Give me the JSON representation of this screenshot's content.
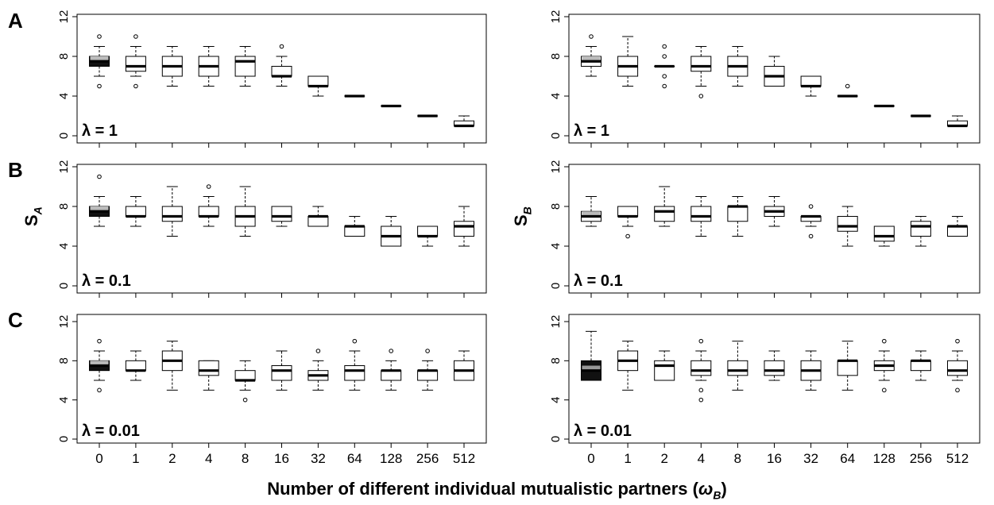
{
  "figure": {
    "xlabel_prefix": "Number of different individual mutualistic partners (",
    "xlabel_symbol": "ω",
    "xlabel_sub": "B",
    "xlabel_suffix": ")",
    "row_letters": [
      "A",
      "B",
      "C"
    ],
    "ylabel_left_main": "S",
    "ylabel_left_sub": "A",
    "ylabel_right_main": "S",
    "ylabel_right_sub": "B"
  },
  "chart_data": [
    {
      "type": "boxplot",
      "id": "A-left",
      "annotation": "λ = 1",
      "categories": [
        "0",
        "1",
        "2",
        "4",
        "8",
        "16",
        "32",
        "64",
        "128",
        "256",
        "512"
      ],
      "ylim": [
        0,
        12
      ],
      "yticks": [
        0,
        4,
        8,
        12
      ],
      "ylabel": "",
      "boxes": [
        {
          "min": 6,
          "q1": 7,
          "median": 7.5,
          "q3": 8,
          "max": 9,
          "outliers": [
            10,
            5
          ],
          "fill": "black",
          "shade": "#bbbbbb"
        },
        {
          "min": 6,
          "q1": 6.5,
          "median": 7,
          "q3": 8,
          "max": 9,
          "outliers": [
            10,
            5
          ]
        },
        {
          "min": 5,
          "q1": 6,
          "median": 7,
          "q3": 8,
          "max": 9,
          "outliers": []
        },
        {
          "min": 5,
          "q1": 6,
          "median": 7,
          "q3": 8,
          "max": 9,
          "outliers": []
        },
        {
          "min": 5,
          "q1": 6,
          "median": 7.5,
          "q3": 8,
          "max": 9,
          "outliers": []
        },
        {
          "min": 5,
          "q1": 6,
          "median": 6,
          "q3": 7,
          "max": 8,
          "outliers": [
            9
          ]
        },
        {
          "min": 4,
          "q1": 5,
          "median": 5,
          "q3": 6,
          "max": 6,
          "outliers": []
        },
        {
          "min": 4,
          "q1": 4,
          "median": 4,
          "q3": 4,
          "max": 4,
          "outliers": []
        },
        {
          "min": 3,
          "q1": 3,
          "median": 3,
          "q3": 3,
          "max": 3,
          "outliers": []
        },
        {
          "min": 2,
          "q1": 2,
          "median": 2,
          "q3": 2,
          "max": 2,
          "outliers": []
        },
        {
          "min": 1,
          "q1": 1,
          "median": 1,
          "q3": 1.5,
          "max": 2,
          "outliers": []
        }
      ]
    },
    {
      "type": "boxplot",
      "id": "A-right",
      "annotation": "λ = 1",
      "categories": [
        "0",
        "1",
        "2",
        "4",
        "8",
        "16",
        "32",
        "64",
        "128",
        "256",
        "512"
      ],
      "ylim": [
        0,
        12
      ],
      "yticks": [
        0,
        4,
        8,
        12
      ],
      "ylabel": "",
      "boxes": [
        {
          "min": 6,
          "q1": 7,
          "median": 7.5,
          "q3": 8,
          "max": 9,
          "outliers": [
            10
          ],
          "fill": "light",
          "shade": "#bbbbbb"
        },
        {
          "min": 5,
          "q1": 6,
          "median": 7,
          "q3": 8,
          "max": 10,
          "outliers": []
        },
        {
          "min": 7,
          "q1": 7,
          "median": 7,
          "q3": 7,
          "max": 7,
          "outliers": [
            9,
            8,
            6,
            5
          ]
        },
        {
          "min": 5,
          "q1": 6.5,
          "median": 7,
          "q3": 8,
          "max": 9,
          "outliers": [
            4
          ]
        },
        {
          "min": 5,
          "q1": 6,
          "median": 7,
          "q3": 8,
          "max": 9,
          "outliers": []
        },
        {
          "min": 5,
          "q1": 5,
          "median": 6,
          "q3": 7,
          "max": 8,
          "outliers": []
        },
        {
          "min": 4,
          "q1": 5,
          "median": 5,
          "q3": 6,
          "max": 6,
          "outliers": []
        },
        {
          "min": 4,
          "q1": 4,
          "median": 4,
          "q3": 4,
          "max": 4,
          "outliers": [
            5
          ]
        },
        {
          "min": 3,
          "q1": 3,
          "median": 3,
          "q3": 3,
          "max": 3,
          "outliers": []
        },
        {
          "min": 2,
          "q1": 2,
          "median": 2,
          "q3": 2,
          "max": 2,
          "outliers": []
        },
        {
          "min": 1,
          "q1": 1,
          "median": 1,
          "q3": 1.5,
          "max": 2,
          "outliers": []
        }
      ]
    },
    {
      "type": "boxplot",
      "id": "B-left",
      "annotation": "λ = 0.1",
      "categories": [
        "0",
        "1",
        "2",
        "4",
        "8",
        "16",
        "32",
        "64",
        "128",
        "256",
        "512"
      ],
      "ylim": [
        0,
        12
      ],
      "yticks": [
        0,
        4,
        8,
        12
      ],
      "ylabel": "S_A",
      "boxes": [
        {
          "min": 6,
          "q1": 7,
          "median": 7.5,
          "q3": 8,
          "max": 9,
          "outliers": [
            11
          ],
          "fill": "black",
          "shade": "#bbbbbb"
        },
        {
          "min": 6,
          "q1": 7,
          "median": 7,
          "q3": 8,
          "max": 9,
          "outliers": []
        },
        {
          "min": 5,
          "q1": 6.5,
          "median": 7,
          "q3": 8,
          "max": 10,
          "outliers": []
        },
        {
          "min": 6,
          "q1": 7,
          "median": 7,
          "q3": 8,
          "max": 9,
          "outliers": [
            10
          ]
        },
        {
          "min": 5,
          "q1": 6,
          "median": 7,
          "q3": 8,
          "max": 10,
          "outliers": []
        },
        {
          "min": 6,
          "q1": 6.5,
          "median": 7,
          "q3": 8,
          "max": 8,
          "outliers": []
        },
        {
          "min": 6,
          "q1": 6,
          "median": 7,
          "q3": 7,
          "max": 8,
          "outliers": []
        },
        {
          "min": 5,
          "q1": 5,
          "median": 6,
          "q3": 6,
          "max": 7,
          "outliers": []
        },
        {
          "min": 4,
          "q1": 4,
          "median": 5,
          "q3": 6,
          "max": 7,
          "outliers": []
        },
        {
          "min": 4,
          "q1": 5,
          "median": 5,
          "q3": 6,
          "max": 6,
          "outliers": []
        },
        {
          "min": 4,
          "q1": 5,
          "median": 6,
          "q3": 6.5,
          "max": 8,
          "outliers": []
        }
      ]
    },
    {
      "type": "boxplot",
      "id": "B-right",
      "annotation": "λ = 0.1",
      "categories": [
        "0",
        "1",
        "2",
        "4",
        "8",
        "16",
        "32",
        "64",
        "128",
        "256",
        "512"
      ],
      "ylim": [
        0,
        12
      ],
      "yticks": [
        0,
        4,
        8,
        12
      ],
      "ylabel": "S_B",
      "boxes": [
        {
          "min": 6,
          "q1": 6.5,
          "median": 7,
          "q3": 7.5,
          "max": 9,
          "outliers": [],
          "fill": "light",
          "shade": "#bbbbbb"
        },
        {
          "min": 6,
          "q1": 7,
          "median": 7,
          "q3": 8,
          "max": 8,
          "outliers": [
            5
          ]
        },
        {
          "min": 6,
          "q1": 6.5,
          "median": 7.5,
          "q3": 8,
          "max": 10,
          "outliers": []
        },
        {
          "min": 5,
          "q1": 6.5,
          "median": 7,
          "q3": 8,
          "max": 9,
          "outliers": []
        },
        {
          "min": 5,
          "q1": 6.5,
          "median": 8,
          "q3": 8,
          "max": 9,
          "outliers": []
        },
        {
          "min": 6,
          "q1": 7,
          "median": 7.5,
          "q3": 8,
          "max": 9,
          "outliers": []
        },
        {
          "min": 6,
          "q1": 6.5,
          "median": 7,
          "q3": 7,
          "max": 7,
          "outliers": [
            8,
            5
          ]
        },
        {
          "min": 4,
          "q1": 5.5,
          "median": 6,
          "q3": 7,
          "max": 8,
          "outliers": []
        },
        {
          "min": 4,
          "q1": 4.5,
          "median": 5,
          "q3": 6,
          "max": 6,
          "outliers": []
        },
        {
          "min": 4,
          "q1": 5,
          "median": 6,
          "q3": 6.5,
          "max": 7,
          "outliers": []
        },
        {
          "min": 5,
          "q1": 5,
          "median": 6,
          "q3": 6,
          "max": 7,
          "outliers": []
        }
      ]
    },
    {
      "type": "boxplot",
      "id": "C-left",
      "annotation": "λ = 0.01",
      "categories": [
        "0",
        "1",
        "2",
        "4",
        "8",
        "16",
        "32",
        "64",
        "128",
        "256",
        "512"
      ],
      "ylim": [
        0,
        12
      ],
      "yticks": [
        0,
        4,
        8,
        12
      ],
      "ylabel": "",
      "boxes": [
        {
          "min": 6,
          "q1": 7,
          "median": 7.5,
          "q3": 8,
          "max": 9,
          "outliers": [
            10,
            5
          ],
          "fill": "black",
          "shade": "#bbbbbb"
        },
        {
          "min": 6,
          "q1": 7,
          "median": 7,
          "q3": 8,
          "max": 9,
          "outliers": []
        },
        {
          "min": 5,
          "q1": 7,
          "median": 8,
          "q3": 9,
          "max": 10,
          "outliers": []
        },
        {
          "min": 5,
          "q1": 6.5,
          "median": 7,
          "q3": 8,
          "max": 8,
          "outliers": []
        },
        {
          "min": 5,
          "q1": 6,
          "median": 6,
          "q3": 7,
          "max": 8,
          "outliers": [
            4
          ]
        },
        {
          "min": 5,
          "q1": 6,
          "median": 7,
          "q3": 7.5,
          "max": 9,
          "outliers": []
        },
        {
          "min": 5,
          "q1": 6,
          "median": 6.5,
          "q3": 7,
          "max": 8,
          "outliers": [
            9
          ]
        },
        {
          "min": 5,
          "q1": 6,
          "median": 7,
          "q3": 7.5,
          "max": 9,
          "outliers": [
            10
          ]
        },
        {
          "min": 5,
          "q1": 6,
          "median": 7,
          "q3": 7,
          "max": 8,
          "outliers": [
            9
          ]
        },
        {
          "min": 5,
          "q1": 6,
          "median": 7,
          "q3": 7,
          "max": 8,
          "outliers": [
            9
          ]
        },
        {
          "min": 6,
          "q1": 6,
          "median": 7,
          "q3": 8,
          "max": 9,
          "outliers": []
        }
      ]
    },
    {
      "type": "boxplot",
      "id": "C-right",
      "annotation": "λ = 0.01",
      "categories": [
        "0",
        "1",
        "2",
        "4",
        "8",
        "16",
        "32",
        "64",
        "128",
        "256",
        "512"
      ],
      "ylim": [
        0,
        12
      ],
      "yticks": [
        0,
        4,
        8,
        12
      ],
      "ylabel": "",
      "boxes": [
        {
          "min": 6,
          "q1": 6,
          "median": 7,
          "q3": 8,
          "max": 11,
          "outliers": [],
          "fill": "black",
          "shade": "#999999"
        },
        {
          "min": 5,
          "q1": 7,
          "median": 8,
          "q3": 9,
          "max": 10,
          "outliers": []
        },
        {
          "min": 6,
          "q1": 6,
          "median": 7.5,
          "q3": 8,
          "max": 9,
          "outliers": []
        },
        {
          "min": 6,
          "q1": 6.5,
          "median": 7,
          "q3": 8,
          "max": 9,
          "outliers": [
            10,
            5,
            4
          ]
        },
        {
          "min": 5,
          "q1": 6.5,
          "median": 7,
          "q3": 8,
          "max": 10,
          "outliers": []
        },
        {
          "min": 6,
          "q1": 6.5,
          "median": 7,
          "q3": 8,
          "max": 9,
          "outliers": []
        },
        {
          "min": 5,
          "q1": 6,
          "median": 7,
          "q3": 8,
          "max": 9,
          "outliers": []
        },
        {
          "min": 5,
          "q1": 6.5,
          "median": 8,
          "q3": 8,
          "max": 10,
          "outliers": []
        },
        {
          "min": 6,
          "q1": 7,
          "median": 7.5,
          "q3": 8,
          "max": 9,
          "outliers": [
            10,
            5
          ]
        },
        {
          "min": 6,
          "q1": 7,
          "median": 8,
          "q3": 8,
          "max": 9,
          "outliers": []
        },
        {
          "min": 6,
          "q1": 6.5,
          "median": 7,
          "q3": 8,
          "max": 9,
          "outliers": [
            10,
            5
          ]
        }
      ]
    }
  ]
}
